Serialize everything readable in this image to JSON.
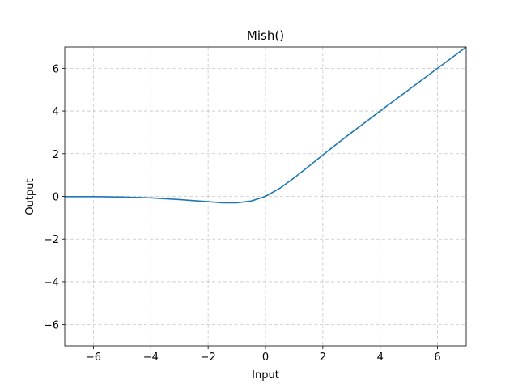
{
  "chart_data": {
    "type": "line",
    "title": "Mish()",
    "x_label": "Input",
    "y_label": "Output",
    "x": [
      -7,
      -6,
      -5,
      -4,
      -3,
      -2.5,
      -2,
      -1.5,
      -1,
      -0.5,
      0,
      0.5,
      1,
      1.5,
      2,
      2.5,
      3,
      3.5,
      4,
      5,
      6,
      7
    ],
    "series": [
      {
        "color": "#1f77b4",
        "values": [
          -0.01,
          -0.01,
          -0.03,
          -0.07,
          -0.15,
          -0.2,
          -0.25,
          -0.3,
          -0.3,
          -0.22,
          0,
          0.38,
          0.87,
          1.4,
          1.94,
          2.47,
          2.99,
          3.49,
          4,
          5,
          6,
          7
        ]
      }
    ],
    "xlim": [
      -7,
      7
    ],
    "ylim": [
      -7,
      7
    ],
    "xticks": [
      {
        "value": -6,
        "label": "−6"
      },
      {
        "value": -4,
        "label": "−4"
      },
      {
        "value": -2,
        "label": "−2"
      },
      0,
      2,
      4,
      6
    ],
    "yticks": [
      {
        "value": -6,
        "label": "−6"
      },
      {
        "value": -4,
        "label": "−4"
      },
      {
        "value": -2,
        "label": "−2"
      },
      0,
      2,
      4,
      6
    ],
    "grid": true
  }
}
